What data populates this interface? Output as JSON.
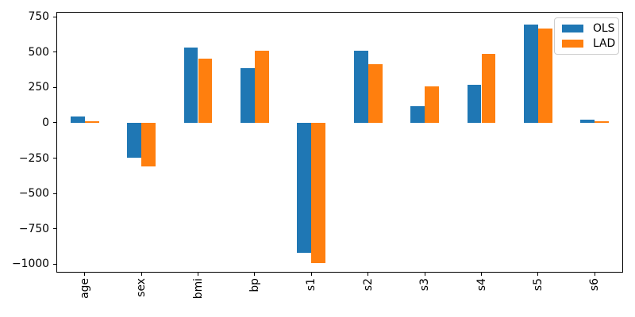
{
  "chart_data": {
    "type": "bar",
    "title": "",
    "xlabel": "",
    "ylabel": "",
    "categories": [
      "age",
      "sex",
      "bmi",
      "bp",
      "s1",
      "s2",
      "s3",
      "s4",
      "s5",
      "s6"
    ],
    "series": [
      {
        "name": "OLS",
        "color": "#1f77b4",
        "values": [
          45,
          -245,
          535,
          385,
          -920,
          510,
          115,
          270,
          695,
          25
        ]
      },
      {
        "name": "LAD",
        "color": "#ff7f0e",
        "values": [
          12,
          -310,
          455,
          510,
          -995,
          415,
          260,
          485,
          670,
          12
        ]
      }
    ],
    "yticks": [
      750,
      500,
      250,
      0,
      -250,
      -500,
      -750,
      -1000
    ],
    "ytick_labels": [
      "750",
      "500",
      "250",
      "0",
      "−250",
      "−500",
      "−750",
      "−1000"
    ],
    "ylim": [
      -1060,
      785
    ],
    "grid": false,
    "x_tick_rotation_deg": 90,
    "legend_position": "upper right",
    "axis_color": "#000000",
    "background_color": "#ffffff"
  }
}
